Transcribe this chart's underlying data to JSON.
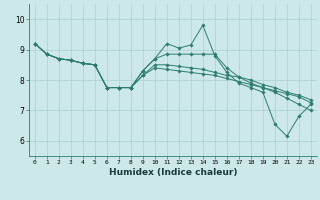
{
  "xlabel": "Humidex (Indice chaleur)",
  "ylabel": "",
  "background_color": "#cce8e8",
  "line_color": "#2e7d6e",
  "grid_color": "#afd4d4",
  "xlim": [
    -0.5,
    23.5
  ],
  "ylim": [
    5.5,
    10.5
  ],
  "xticks": [
    0,
    1,
    2,
    3,
    4,
    5,
    6,
    7,
    8,
    9,
    10,
    11,
    12,
    13,
    14,
    15,
    16,
    17,
    18,
    19,
    20,
    21,
    22,
    23
  ],
  "yticks": [
    6,
    7,
    8,
    9,
    10
  ],
  "series": [
    [
      9.2,
      8.85,
      8.7,
      8.65,
      8.55,
      8.5,
      7.75,
      7.75,
      7.75,
      8.3,
      8.7,
      9.2,
      9.05,
      9.15,
      9.8,
      8.8,
      8.25,
      7.9,
      7.75,
      7.6,
      6.55,
      6.15,
      6.8,
      7.2
    ],
    [
      9.2,
      8.85,
      8.7,
      8.65,
      8.55,
      8.5,
      7.75,
      7.75,
      7.75,
      8.3,
      8.7,
      8.85,
      8.85,
      8.85,
      8.85,
      8.85,
      8.4,
      8.1,
      7.9,
      7.75,
      7.65,
      7.55,
      7.45,
      7.25
    ],
    [
      9.2,
      8.85,
      8.7,
      8.65,
      8.55,
      8.5,
      7.75,
      7.75,
      7.75,
      8.15,
      8.5,
      8.5,
      8.45,
      8.4,
      8.35,
      8.25,
      8.15,
      8.1,
      8.0,
      7.85,
      7.75,
      7.6,
      7.5,
      7.35
    ],
    [
      9.2,
      8.85,
      8.7,
      8.65,
      8.55,
      8.5,
      7.75,
      7.75,
      7.75,
      8.15,
      8.4,
      8.35,
      8.3,
      8.25,
      8.2,
      8.15,
      8.05,
      7.95,
      7.85,
      7.75,
      7.6,
      7.4,
      7.2,
      7.0
    ]
  ]
}
